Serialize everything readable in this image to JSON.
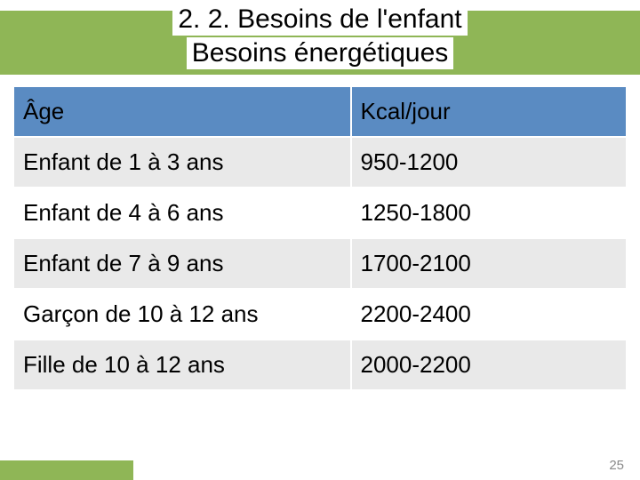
{
  "title": {
    "line1": "2. 2. Besoins de l'enfant",
    "line2": "Besoins énergétiques"
  },
  "table": {
    "type": "table",
    "header_bg": "#5a8bc2",
    "row_even_bg": "#e9e9e9",
    "row_odd_bg": "#ffffff",
    "border_color": "#ffffff",
    "font_size": 26,
    "columns": [
      {
        "label": "Âge",
        "width_pct": 55,
        "align": "left"
      },
      {
        "label": "Kcal/jour",
        "width_pct": 45,
        "align": "left"
      }
    ],
    "rows": [
      [
        "Enfant de 1 à 3 ans",
        "950-1200"
      ],
      [
        "Enfant de 4 à 6 ans",
        "1250-1800"
      ],
      [
        "Enfant de 7 à 9 ans",
        "1700-2100"
      ],
      [
        "Garçon de 10 à 12 ans",
        "2200-2400"
      ],
      [
        "Fille de 10 à 12 ans",
        "2000-2200"
      ]
    ]
  },
  "accent_color": "#8fb656",
  "page_number": "25"
}
